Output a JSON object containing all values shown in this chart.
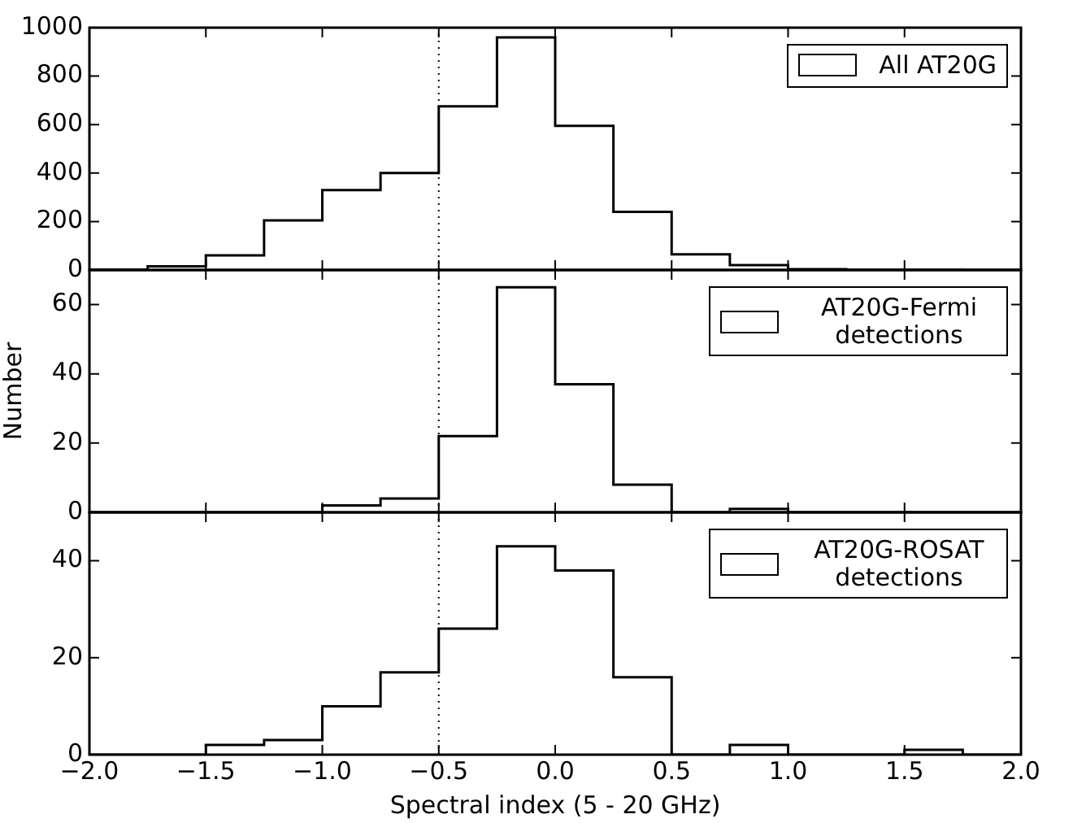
{
  "chart_data": [
    {
      "type": "histogram",
      "bins": [
        -2,
        -1.75,
        -1.5,
        -1.25,
        -1,
        -0.75,
        -0.5,
        -0.25,
        0,
        0.25,
        0.5,
        0.75,
        1,
        1.25,
        1.5,
        1.75,
        2
      ],
      "series": [
        {
          "name": "All AT20G",
          "color": "#000000",
          "values": [
            2,
            15,
            60,
            205,
            330,
            400,
            675,
            960,
            595,
            240,
            65,
            20,
            3,
            1,
            1,
            0
          ]
        }
      ],
      "xlim": [
        -2,
        2
      ],
      "xticks": [
        {
          "value": -2,
          "label": null
        },
        {
          "value": -1.5,
          "label": null
        },
        {
          "value": -1,
          "label": null
        },
        {
          "value": -0.5,
          "label": null
        },
        {
          "value": 0,
          "label": null
        },
        {
          "value": 0.5,
          "label": null
        },
        {
          "value": 1,
          "label": null
        },
        {
          "value": 1.5,
          "label": null
        },
        {
          "value": 2,
          "label": null
        }
      ],
      "ylim": [
        0,
        1000
      ],
      "yticks": [
        0,
        200,
        400,
        600,
        800,
        1000
      ],
      "tick_labels": "y",
      "legend": "top right",
      "ref_lines": [
        {
          "axis": "x",
          "value": -0.5,
          "color": "#000000",
          "line_style": "dotted"
        }
      ]
    },
    {
      "type": "histogram",
      "bins": [
        -2,
        -1.75,
        -1.5,
        -1.25,
        -1,
        -0.75,
        -0.5,
        -0.25,
        0,
        0.25,
        0.5,
        0.75,
        1,
        1.25,
        1.5,
        1.75,
        2
      ],
      "series": [
        {
          "name": "AT20G-Fermi detections",
          "color": "#000000",
          "values": [
            0,
            0,
            0,
            0,
            2,
            4,
            22,
            65,
            37,
            8,
            0,
            1,
            0,
            0,
            0,
            0
          ]
        }
      ],
      "xlim": [
        -2,
        2
      ],
      "xticks": [
        {
          "value": -2,
          "label": null
        },
        {
          "value": -1.5,
          "label": null
        },
        {
          "value": -1,
          "label": null
        },
        {
          "value": -0.5,
          "label": null
        },
        {
          "value": 0,
          "label": null
        },
        {
          "value": 0.5,
          "label": null
        },
        {
          "value": 1,
          "label": null
        },
        {
          "value": 1.5,
          "label": null
        },
        {
          "value": 2,
          "label": null
        }
      ],
      "ylim": [
        0,
        70
      ],
      "yticks": [
        0,
        20,
        40,
        60
      ],
      "ylabel": "Number",
      "tick_labels": "y",
      "legend": "top right",
      "ref_lines": [
        {
          "axis": "x",
          "value": -0.5,
          "color": "#000000",
          "line_style": "dotted"
        }
      ]
    },
    {
      "type": "histogram",
      "bins": [
        -2,
        -1.75,
        -1.5,
        -1.25,
        -1,
        -0.75,
        -0.5,
        -0.25,
        0,
        0.25,
        0.5,
        0.75,
        1,
        1.25,
        1.5,
        1.75,
        2
      ],
      "series": [
        {
          "name": "AT20G-ROSAT detections",
          "color": "#000000",
          "values": [
            0,
            0,
            2,
            3,
            10,
            17,
            26,
            43,
            38,
            16,
            0,
            2,
            0,
            0,
            1,
            0
          ]
        }
      ],
      "xlim": [
        -2,
        2
      ],
      "xticks": [
        {
          "value": -2,
          "label": "−2.0"
        },
        {
          "value": -1.5,
          "label": "−1.5"
        },
        {
          "value": -1,
          "label": "−1.0"
        },
        {
          "value": -0.5,
          "label": "−0.5"
        },
        {
          "value": 0,
          "label": "0.0"
        },
        {
          "value": 0.5,
          "label": "0.5"
        },
        {
          "value": 1,
          "label": "1.0"
        },
        {
          "value": 1.5,
          "label": "1.5"
        },
        {
          "value": 2,
          "label": "2.0"
        }
      ],
      "ylim": [
        0,
        50
      ],
      "yticks": [
        0,
        20,
        40
      ],
      "xlabel": "Spectral index (5 - 20 GHz)",
      "legend": "top right",
      "ref_lines": [
        {
          "axis": "x",
          "value": -0.5,
          "color": "#000000",
          "line_style": "dotted"
        }
      ]
    }
  ]
}
